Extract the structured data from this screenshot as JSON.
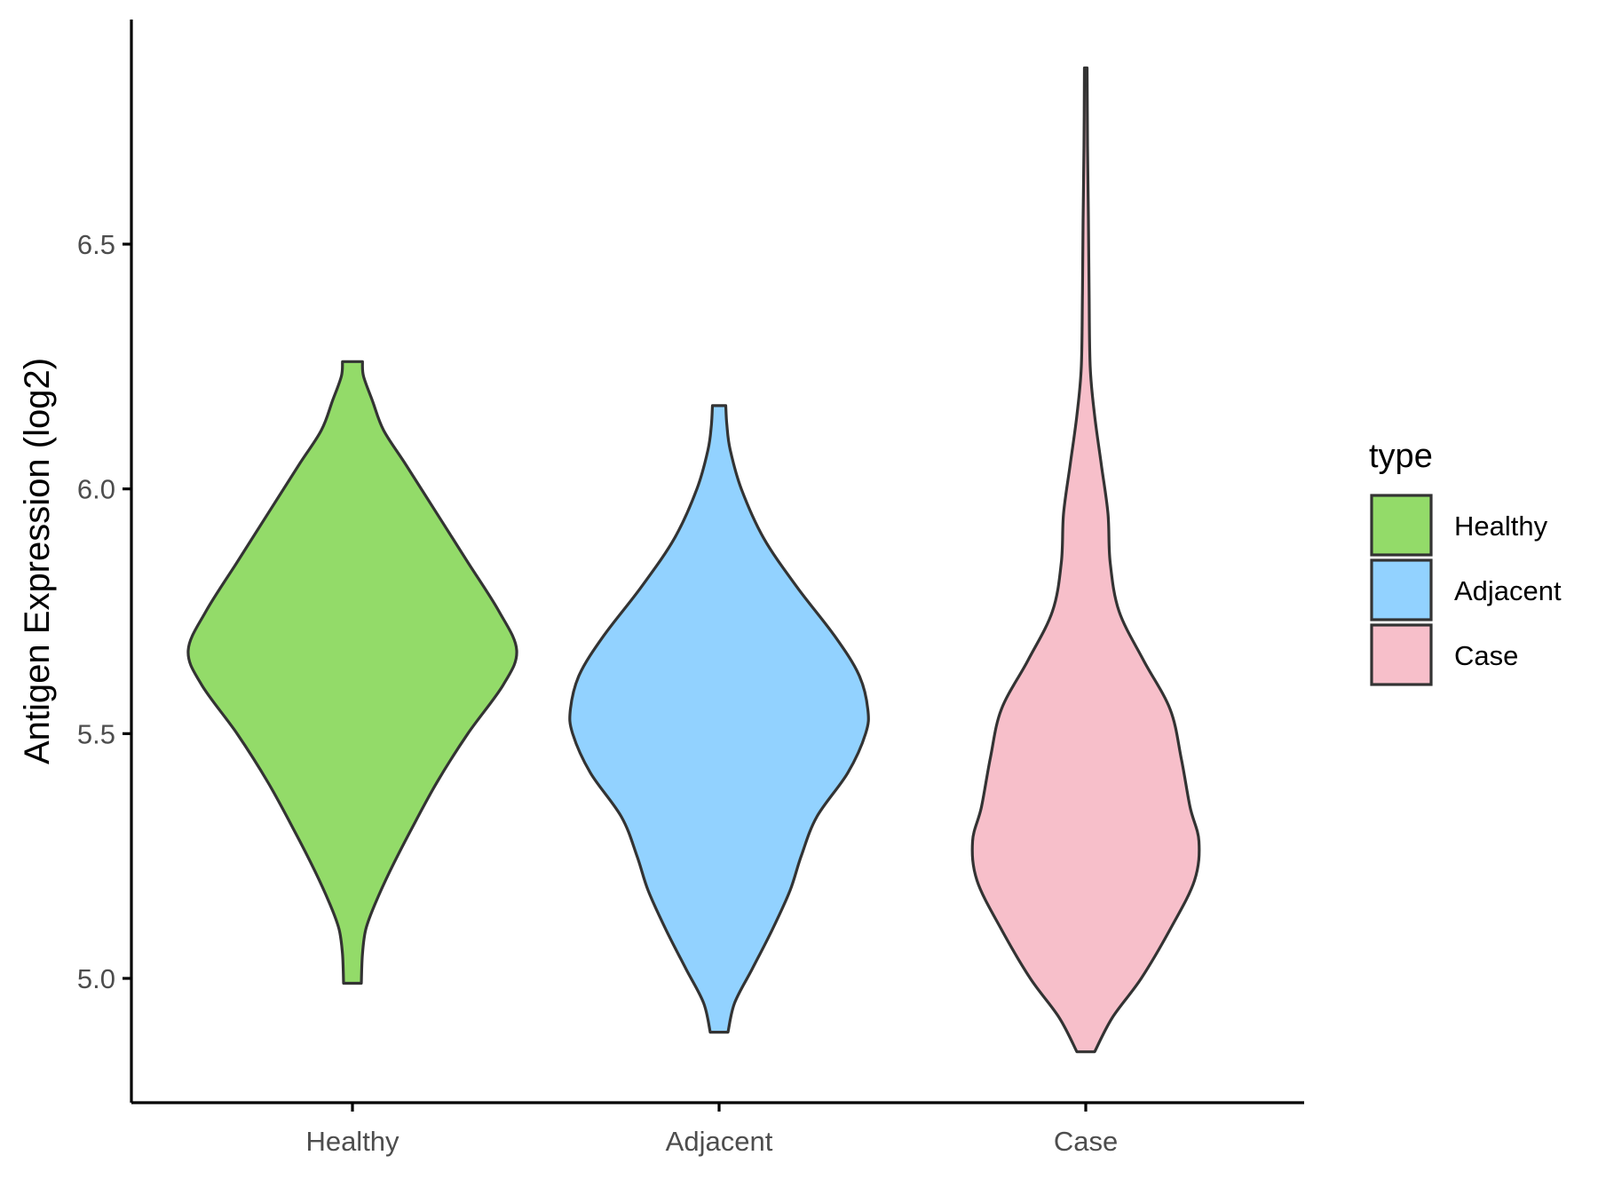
{
  "chart_data": {
    "type": "violin",
    "title": "",
    "xlabel": "",
    "ylabel": "Antigen Expression (log2)",
    "ylim": [
      4.77,
      7.0
    ],
    "y_ticks": [
      5.0,
      5.5,
      6.0,
      6.5
    ],
    "y_tick_labels": [
      "5.0",
      "5.5",
      "6.0",
      "6.5"
    ],
    "categories": [
      "Healthy",
      "Adjacent",
      "Case"
    ],
    "grid": false,
    "legend": {
      "title": "type",
      "placement": "right",
      "items": [
        {
          "label": "Healthy",
          "color": "#93DB69"
        },
        {
          "label": "Adjacent",
          "color": "#92D2FF"
        },
        {
          "label": "Case",
          "color": "#F7BFCA"
        }
      ]
    },
    "outline_color": "#333333",
    "series": [
      {
        "name": "Healthy",
        "color": "#93DB69",
        "min": 4.99,
        "max": 6.26,
        "profile": [
          [
            4.99,
            0.04
          ],
          [
            5.05,
            0.045
          ],
          [
            5.1,
            0.06
          ],
          [
            5.15,
            0.1
          ],
          [
            5.22,
            0.17
          ],
          [
            5.3,
            0.26
          ],
          [
            5.4,
            0.38
          ],
          [
            5.5,
            0.52
          ],
          [
            5.6,
            0.68
          ],
          [
            5.67,
            0.74
          ],
          [
            5.75,
            0.66
          ],
          [
            5.85,
            0.52
          ],
          [
            5.95,
            0.38
          ],
          [
            6.05,
            0.24
          ],
          [
            6.12,
            0.14
          ],
          [
            6.18,
            0.09
          ],
          [
            6.23,
            0.05
          ],
          [
            6.26,
            0.045
          ]
        ]
      },
      {
        "name": "Adjacent",
        "color": "#92D2FF",
        "min": 4.89,
        "max": 6.17,
        "profile": [
          [
            4.89,
            0.04
          ],
          [
            4.95,
            0.07
          ],
          [
            5.02,
            0.15
          ],
          [
            5.1,
            0.24
          ],
          [
            5.18,
            0.32
          ],
          [
            5.25,
            0.37
          ],
          [
            5.33,
            0.44
          ],
          [
            5.42,
            0.58
          ],
          [
            5.5,
            0.66
          ],
          [
            5.55,
            0.67
          ],
          [
            5.62,
            0.63
          ],
          [
            5.7,
            0.52
          ],
          [
            5.8,
            0.35
          ],
          [
            5.9,
            0.2
          ],
          [
            6.0,
            0.1
          ],
          [
            6.08,
            0.05
          ],
          [
            6.13,
            0.035
          ],
          [
            6.17,
            0.03
          ]
        ]
      },
      {
        "name": "Case",
        "color": "#F7BFCA",
        "min": 4.85,
        "max": 6.86,
        "profile": [
          [
            4.85,
            0.04
          ],
          [
            4.92,
            0.12
          ],
          [
            5.0,
            0.25
          ],
          [
            5.1,
            0.38
          ],
          [
            5.2,
            0.49
          ],
          [
            5.28,
            0.51
          ],
          [
            5.35,
            0.47
          ],
          [
            5.45,
            0.43
          ],
          [
            5.55,
            0.38
          ],
          [
            5.65,
            0.26
          ],
          [
            5.75,
            0.15
          ],
          [
            5.85,
            0.11
          ],
          [
            5.95,
            0.1
          ],
          [
            6.05,
            0.07
          ],
          [
            6.15,
            0.04
          ],
          [
            6.25,
            0.02
          ],
          [
            6.4,
            0.015
          ],
          [
            6.55,
            0.012
          ],
          [
            6.7,
            0.008
          ],
          [
            6.86,
            0.006
          ]
        ]
      }
    ]
  }
}
